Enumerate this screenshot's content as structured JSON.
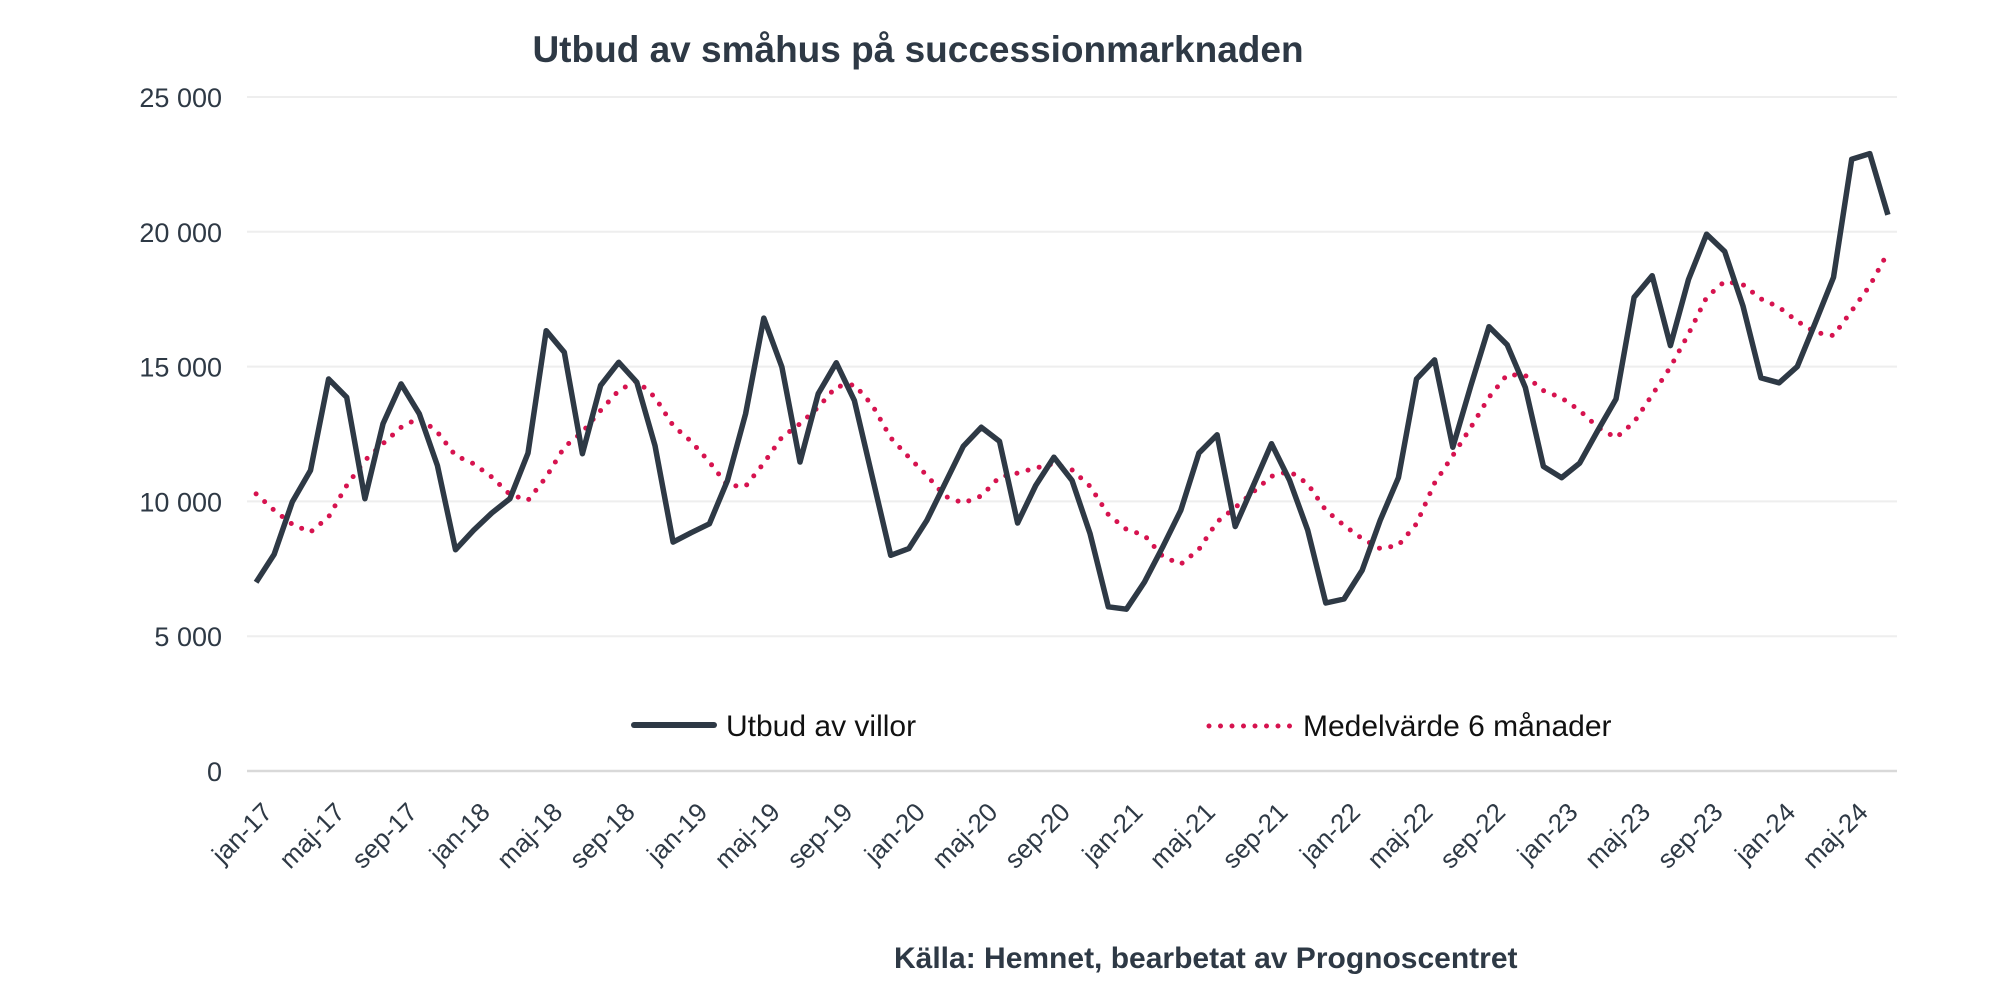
{
  "chart_data": {
    "type": "line",
    "title": "Utbud av småhus på successionmarknaden",
    "source": "Källa: Hemnet, bearbetat av Prognoscentret",
    "xlabel": "",
    "ylabel": "",
    "ylim": [
      0,
      25000
    ],
    "yticks": [
      0,
      5000,
      10000,
      15000,
      20000,
      25000
    ],
    "ytick_labels": [
      "0",
      "5 000",
      "10 000",
      "15 000",
      "20 000",
      "25 000"
    ],
    "grid": true,
    "legend_position": "bottom-inside",
    "x": [
      "jan-17",
      "feb-17",
      "mar-17",
      "apr-17",
      "maj-17",
      "jun-17",
      "jul-17",
      "aug-17",
      "sep-17",
      "okt-17",
      "nov-17",
      "dec-17",
      "jan-18",
      "feb-18",
      "mar-18",
      "apr-18",
      "maj-18",
      "jun-18",
      "jul-18",
      "aug-18",
      "sep-18",
      "okt-18",
      "nov-18",
      "dec-18",
      "jan-19",
      "feb-19",
      "mar-19",
      "apr-19",
      "maj-19",
      "jun-19",
      "jul-19",
      "aug-19",
      "sep-19",
      "okt-19",
      "nov-19",
      "dec-19",
      "jan-20",
      "feb-20",
      "mar-20",
      "apr-20",
      "maj-20",
      "jun-20",
      "jul-20",
      "aug-20",
      "sep-20",
      "okt-20",
      "nov-20",
      "dec-20",
      "jan-21",
      "feb-21",
      "mar-21",
      "apr-21",
      "maj-21",
      "jun-21",
      "jul-21",
      "aug-21",
      "sep-21",
      "okt-21",
      "nov-21",
      "dec-21",
      "jan-22",
      "feb-22",
      "mar-22",
      "apr-22",
      "maj-22",
      "jun-22",
      "jul-22",
      "aug-22",
      "sep-22",
      "okt-22",
      "nov-22",
      "dec-22",
      "jan-23",
      "feb-23",
      "mar-23",
      "apr-23",
      "maj-23",
      "jun-23",
      "jul-23",
      "aug-23",
      "sep-23",
      "okt-23",
      "nov-23",
      "dec-23",
      "jan-24",
      "feb-24",
      "mar-24",
      "apr-24",
      "maj-24",
      "jun-24",
      "jul-24"
    ],
    "xtick_labels": [
      "jan-17",
      "maj-17",
      "sep-17",
      "jan-18",
      "maj-18",
      "sep-18",
      "jan-19",
      "maj-19",
      "sep-19",
      "jan-20",
      "maj-20",
      "sep-20",
      "jan-21",
      "maj-21",
      "sep-21",
      "jan-22",
      "maj-22",
      "sep-22",
      "jan-23",
      "maj-23",
      "sep-23",
      "jan-24",
      "maj-24"
    ],
    "series": [
      {
        "name": "Utbud av villor",
        "color": "#2e3945",
        "style": "solid",
        "values": [
          7000,
          8040,
          9980,
          11150,
          14540,
          13860,
          10100,
          12880,
          14360,
          13250,
          11330,
          8210,
          8930,
          9570,
          10100,
          11790,
          16330,
          15530,
          11770,
          14300,
          15160,
          14420,
          12070,
          8490,
          8840,
          9170,
          10780,
          13250,
          16800,
          14980,
          11460,
          13990,
          15140,
          13740,
          10880,
          8000,
          8250,
          9300,
          10670,
          12040,
          12750,
          12230,
          9200,
          10590,
          11640,
          10780,
          8800,
          6090,
          6000,
          7010,
          8310,
          9670,
          11790,
          12470,
          9070,
          10590,
          12140,
          10780,
          8930,
          6230,
          6380,
          7440,
          9300,
          10880,
          14540,
          15250,
          12010,
          14300,
          16480,
          15810,
          14230,
          11300,
          10880,
          11420,
          12630,
          13800,
          17570,
          18370,
          15780,
          18230,
          19910,
          19270,
          17260,
          14580,
          14400,
          15000,
          16640,
          18310,
          22690,
          22900,
          20630
        ]
      },
      {
        "name": "Medelvärde 6 månader",
        "color": "#d6134f",
        "style": "dotted",
        "values": [
          10280,
          9670,
          9150,
          8860,
          9420,
          10590,
          11520,
          12140,
          12750,
          13100,
          12570,
          11700,
          11400,
          10900,
          10260,
          10040,
          10900,
          12010,
          12570,
          13370,
          14110,
          14480,
          13860,
          12810,
          12220,
          11460,
          10590,
          10560,
          11420,
          12380,
          12880,
          13490,
          14260,
          14330,
          13560,
          12360,
          11640,
          10960,
          10190,
          9940,
          10200,
          10900,
          11050,
          11240,
          11400,
          11170,
          10560,
          9510,
          8960,
          8740,
          7960,
          7670,
          8220,
          9240,
          9770,
          10350,
          10930,
          11120,
          10650,
          9670,
          9110,
          8620,
          8250,
          8370,
          9170,
          10680,
          11700,
          12750,
          13860,
          14700,
          14670,
          14110,
          13840,
          13370,
          12750,
          12360,
          12940,
          13950,
          14980,
          16210,
          17570,
          18160,
          18040,
          17510,
          17200,
          16680,
          16270,
          16150,
          17070,
          18000,
          19230
        ]
      }
    ]
  }
}
